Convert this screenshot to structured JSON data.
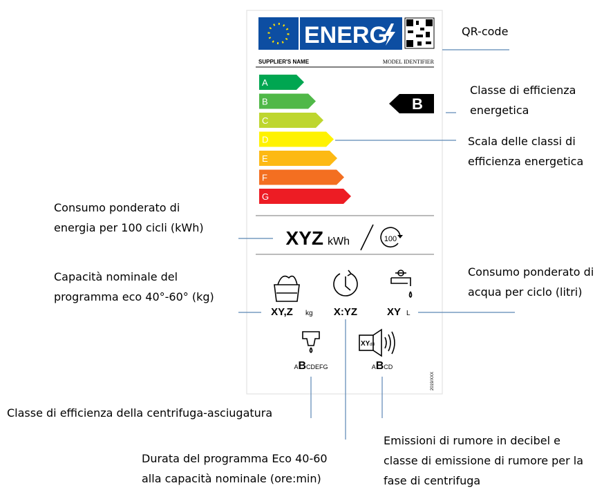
{
  "label": {
    "header": {
      "energy": "ENERG",
      "supplier": "SUPPLIER'S NAME",
      "model": "MODEL IDENTIFIER"
    },
    "classes": [
      {
        "letter": "A",
        "color": "#00a651"
      },
      {
        "letter": "B",
        "color": "#50b848"
      },
      {
        "letter": "C",
        "color": "#bed62f"
      },
      {
        "letter": "D",
        "color": "#fff200"
      },
      {
        "letter": "E",
        "color": "#fdb913"
      },
      {
        "letter": "F",
        "color": "#f36f21"
      },
      {
        "letter": "G",
        "color": "#ed1c24"
      }
    ],
    "rating": "B",
    "energy": {
      "value": "XYZ",
      "unit": "kWh",
      "cycles": "100"
    },
    "capacity": {
      "value": "XY,Z",
      "unit": "kg"
    },
    "duration": {
      "value": "X:YZ"
    },
    "water": {
      "value": "XY",
      "unit": "L"
    },
    "spin": {
      "before": "A",
      "class": "B",
      "after": "CDEFG"
    },
    "noise": {
      "value": "XY",
      "unit": "dB",
      "before": "A",
      "class": "B",
      "after": "CD"
    },
    "regulation": "2019/XXX"
  },
  "annotations": [
    {
      "lines": [
        "QR-code"
      ]
    },
    {
      "lines": [
        "Classe di efficienza",
        "energetica"
      ]
    },
    {
      "lines": [
        "Scala delle classi di",
        "efficienza energetica"
      ]
    },
    {
      "lines": [
        "Consumo ponderato di",
        "energia per 100 cicli (kWh)"
      ]
    },
    {
      "lines": [
        "Capacità nominale del",
        "programma eco 40°-60° (kg)"
      ]
    },
    {
      "lines": [
        "Consumo ponderato di",
        "acqua per ciclo (litri)"
      ]
    },
    {
      "lines": [
        "Classe di efficienza della centrifuga-asciugatura"
      ]
    },
    {
      "lines": [
        "Durata del programma Eco 40-60",
        "alla capacità nominale (ore:min)"
      ]
    },
    {
      "lines": [
        "Emissioni di rumore in decibel e",
        "classe di emissione di rumore per la",
        "fase di centrifuga"
      ]
    }
  ]
}
